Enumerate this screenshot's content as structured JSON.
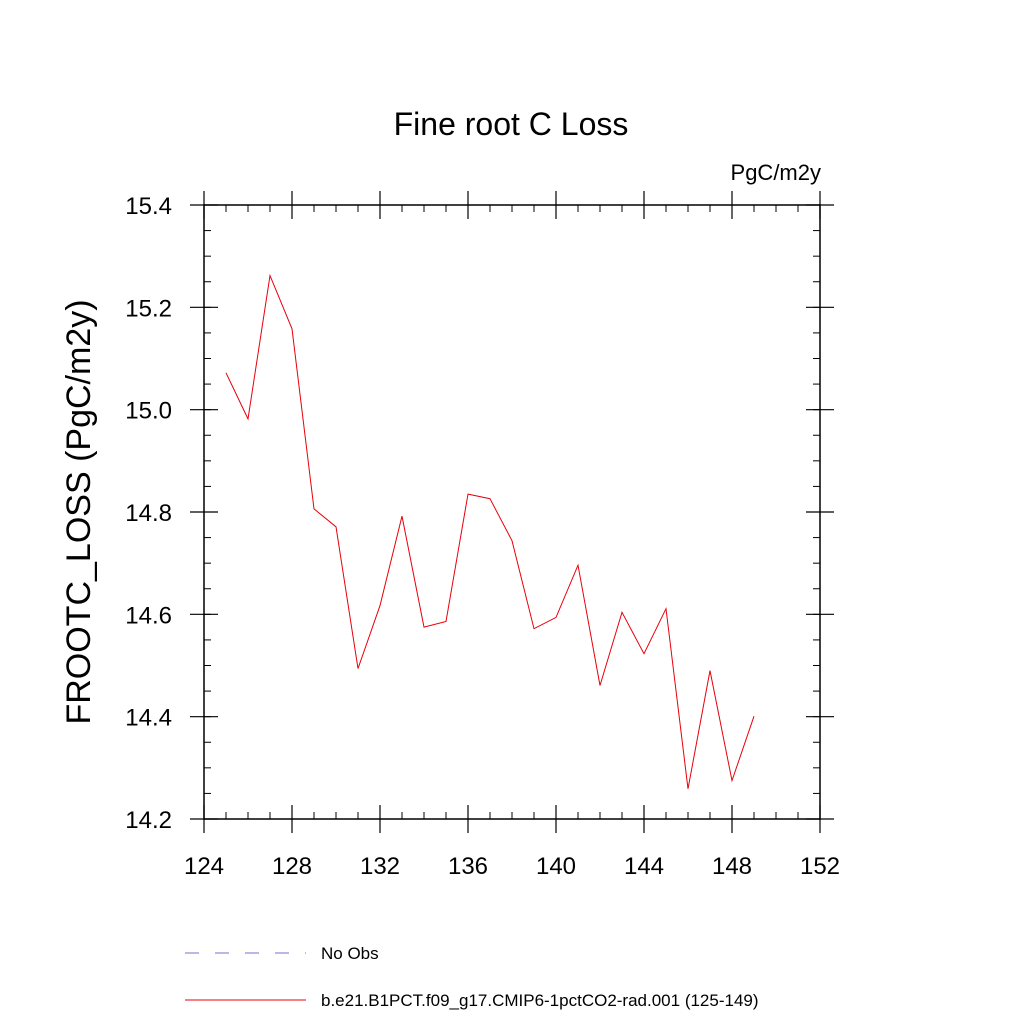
{
  "chart_data": {
    "type": "line",
    "title": "Fine root C Loss",
    "units_label": "PgC/m2y",
    "xlabel": "",
    "ylabel": "FROOTC_LOSS  (PgC/m2y)",
    "xlim": [
      124,
      152
    ],
    "ylim": [
      14.2,
      15.4
    ],
    "x_ticks": [
      124,
      128,
      132,
      136,
      140,
      144,
      148,
      152
    ],
    "x_tick_labels": [
      "124",
      "128",
      "132",
      "136",
      "140",
      "144",
      "148",
      "152"
    ],
    "y_ticks": [
      14.2,
      14.4,
      14.6,
      14.8,
      15.0,
      15.2,
      15.4
    ],
    "y_tick_labels": [
      "14.2",
      "14.4",
      "14.6",
      "14.8",
      "15.0",
      "15.2",
      "15.4"
    ],
    "grid": false,
    "legend_position": "bottom",
    "series": [
      {
        "name": "b.e21.B1PCT.f09_g17.CMIP6-1pctCO2-rad.001 (125-149)",
        "color": "#e8000b",
        "style": "solid",
        "x": [
          125,
          126,
          127,
          128,
          129,
          130,
          131,
          132,
          133,
          134,
          135,
          136,
          137,
          138,
          139,
          140,
          141,
          142,
          143,
          144,
          145,
          146,
          147,
          148,
          149
        ],
        "y": [
          15.072,
          14.982,
          15.262,
          15.158,
          14.806,
          14.771,
          14.494,
          14.617,
          14.792,
          14.575,
          14.586,
          14.835,
          14.826,
          14.744,
          14.572,
          14.594,
          14.696,
          14.461,
          14.604,
          14.523,
          14.611,
          14.259,
          14.49,
          14.275,
          14.401
        ]
      }
    ],
    "legend": [
      {
        "label": "No Obs",
        "color": "#7b6fd0",
        "style": "dashed"
      },
      {
        "label": "b.e21.B1PCT.f09_g17.CMIP6-1pctCO2-rad.001 (125-149)",
        "color": "#e8000b",
        "style": "solid"
      }
    ]
  }
}
